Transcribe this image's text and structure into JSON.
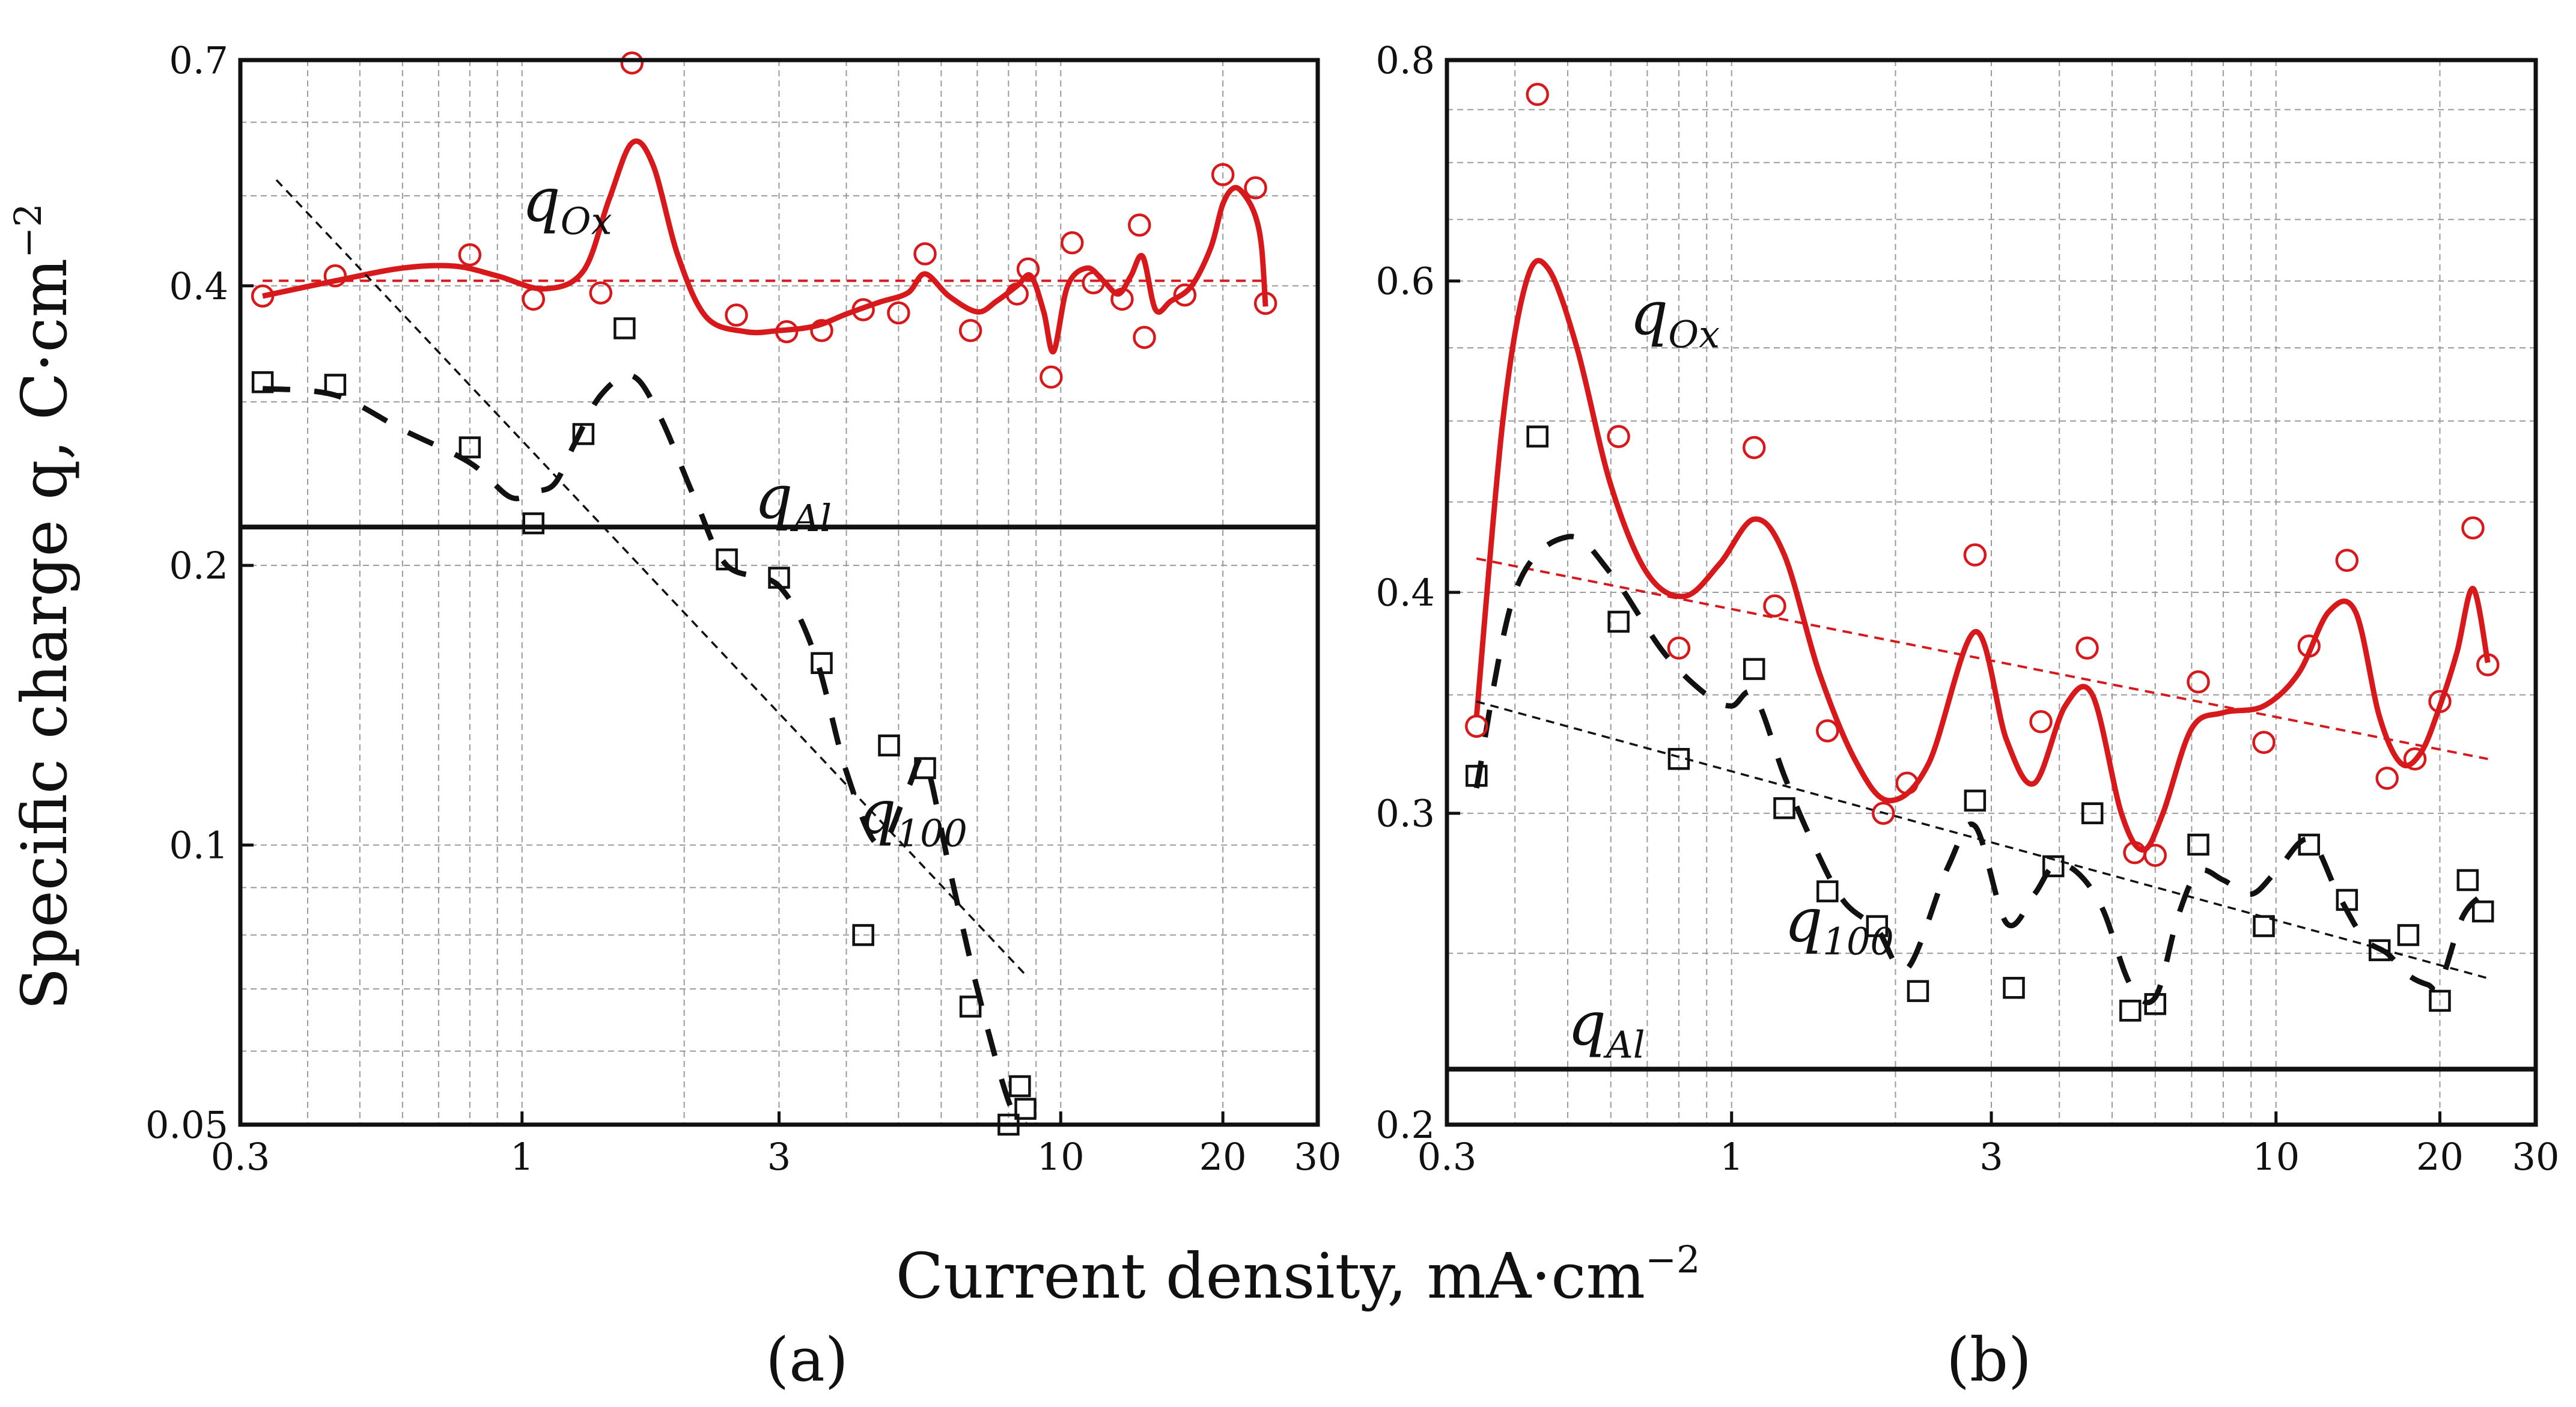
{
  "figure": {
    "ylabel": "Specific charge q, C·cm",
    "ylabel_exp": "−2",
    "xlabel": "Current density, mA·cm",
    "xlabel_exp": "−2"
  },
  "colors": {
    "ox": "#d7191c",
    "hundred": "#111111",
    "axis": "#111111",
    "grid": "#9a9a9a"
  },
  "chart_data": [
    {
      "type": "scatter",
      "panel_label": "(a)",
      "xscale": "log",
      "yscale": "log",
      "xlim": [
        0.3,
        30
      ],
      "ylim": [
        0.05,
        0.7
      ],
      "xticks": [
        0.3,
        1,
        3,
        10,
        20,
        30
      ],
      "xtick_labels": [
        "0.3",
        "1",
        "3",
        "10",
        "20",
        "30"
      ],
      "yticks": [
        0.05,
        0.1,
        0.2,
        0.4,
        0.7
      ],
      "ytick_labels": [
        "0.05",
        "0.1",
        "0.2",
        "0.4",
        "0.7"
      ],
      "xgrid": [
        0.3,
        0.4,
        0.5,
        0.6,
        0.7,
        0.8,
        0.9,
        1,
        2,
        3,
        4,
        5,
        6,
        7,
        8,
        9,
        10,
        20,
        30
      ],
      "ygrid": [
        0.05,
        0.06,
        0.07,
        0.08,
        0.09,
        0.1,
        0.2,
        0.3,
        0.4,
        0.5,
        0.6,
        0.7
      ],
      "q_al": 0.22,
      "annotations": {
        "ox": {
          "main": "q",
          "sub": "Ox",
          "at": [
            1.0,
            0.47
          ]
        },
        "hundred": {
          "main": "q",
          "sub": "100",
          "at": [
            4.2,
            0.103
          ]
        },
        "al": {
          "main": "q",
          "sub": "Al",
          "at": [
            2.7,
            0.225
          ]
        }
      },
      "series": [
        {
          "name": "q_Ox data",
          "marker": "circle",
          "color": "#d7191c",
          "x": [
            0.33,
            0.45,
            0.8,
            1.05,
            1.4,
            1.6,
            2.5,
            3.1,
            3.6,
            4.3,
            5.0,
            5.6,
            6.8,
            8.3,
            8.7,
            9.6,
            10.5,
            11.5,
            13.0,
            14.0,
            14.3,
            17.0,
            20.0,
            23.0,
            24.0
          ],
          "y": [
            0.39,
            0.41,
            0.432,
            0.387,
            0.393,
            0.695,
            0.372,
            0.357,
            0.358,
            0.377,
            0.374,
            0.433,
            0.358,
            0.392,
            0.417,
            0.319,
            0.445,
            0.403,
            0.387,
            0.465,
            0.352,
            0.391,
            0.527,
            0.51,
            0.383
          ]
        },
        {
          "name": "q_Ox smooth",
          "line": "solid",
          "color": "#d7191c",
          "x": [
            0.33,
            0.45,
            0.6,
            0.75,
            0.9,
            1.1,
            1.3,
            1.45,
            1.6,
            1.75,
            1.95,
            2.2,
            2.6,
            3.0,
            3.5,
            4.0,
            4.6,
            5.2,
            5.6,
            6.2,
            7.0,
            7.6,
            8.3,
            8.8,
            9.3,
            9.7,
            10.3,
            11.2,
            12.0,
            12.8,
            13.5,
            14.2,
            15.0,
            16.0,
            17.5,
            19.0,
            20.0,
            21.0,
            22.0,
            23.0,
            23.6,
            24.0
          ],
          "y": [
            0.39,
            0.405,
            0.418,
            0.42,
            0.41,
            0.397,
            0.415,
            0.495,
            0.57,
            0.54,
            0.43,
            0.37,
            0.357,
            0.358,
            0.362,
            0.373,
            0.384,
            0.393,
            0.412,
            0.39,
            0.375,
            0.385,
            0.4,
            0.41,
            0.375,
            0.34,
            0.4,
            0.418,
            0.405,
            0.392,
            0.41,
            0.43,
            0.377,
            0.385,
            0.4,
            0.44,
            0.49,
            0.51,
            0.5,
            0.475,
            0.44,
            0.38
          ]
        },
        {
          "name": "q_Ox trend",
          "line": "dashed",
          "color": "#d7191c",
          "x": [
            0.33,
            24.0
          ],
          "y": [
            0.405,
            0.405
          ]
        },
        {
          "name": "q_100 data",
          "marker": "square",
          "color": "#111111",
          "x": [
            0.33,
            0.45,
            0.8,
            1.05,
            1.3,
            1.55,
            2.4,
            3.0,
            3.6,
            4.3,
            4.8,
            5.6,
            6.8,
            8.0,
            8.4,
            8.6
          ],
          "y": [
            0.315,
            0.313,
            0.268,
            0.222,
            0.277,
            0.36,
            0.203,
            0.194,
            0.157,
            0.08,
            0.128,
            0.121,
            0.067,
            0.05,
            0.055,
            0.052
          ]
        },
        {
          "name": "q_100 dashed curve",
          "line": "long-dash",
          "color": "#111111",
          "x": [
            0.33,
            0.45,
            0.6,
            0.8,
            0.95,
            1.05,
            1.15,
            1.25,
            1.4,
            1.6,
            1.8,
            2.1,
            2.4,
            3.0,
            3.5,
            4.0,
            4.6,
            5.2,
            5.6,
            6.2,
            7.0,
            8.0,
            8.6
          ],
          "y": [
            0.31,
            0.305,
            0.28,
            0.258,
            0.237,
            0.24,
            0.245,
            0.27,
            0.305,
            0.32,
            0.29,
            0.235,
            0.2,
            0.19,
            0.16,
            0.12,
            0.1,
            0.115,
            0.123,
            0.095,
            0.07,
            0.053,
            0.05
          ]
        },
        {
          "name": "q_100 trend",
          "line": "dashed-thin",
          "color": "#111111",
          "x": [
            0.35,
            8.7
          ],
          "y": [
            0.52,
            0.072
          ]
        },
        {
          "name": "q_Al",
          "line": "solid-thick",
          "color": "#111111",
          "x": [
            0.3,
            30
          ],
          "y": [
            0.22,
            0.22
          ]
        }
      ]
    },
    {
      "type": "scatter",
      "panel_label": "(b)",
      "xscale": "log",
      "yscale": "log",
      "xlim": [
        0.3,
        30
      ],
      "ylim": [
        0.2,
        0.8
      ],
      "xticks": [
        0.3,
        1,
        3,
        10,
        20,
        30
      ],
      "xtick_labels": [
        "0.3",
        "1",
        "3",
        "10",
        "20",
        "30"
      ],
      "yticks": [
        0.2,
        0.3,
        0.4,
        0.6,
        0.8
      ],
      "ytick_labels": [
        "0.2",
        "0.3",
        "0.4",
        "0.6",
        "0.8"
      ],
      "xgrid": [
        0.3,
        0.4,
        0.5,
        0.6,
        0.7,
        0.8,
        0.9,
        1,
        2,
        3,
        4,
        5,
        6,
        7,
        8,
        9,
        10,
        20,
        30
      ],
      "ygrid": [
        0.2,
        0.25,
        0.3,
        0.35,
        0.4,
        0.45,
        0.5,
        0.55,
        0.6,
        0.65,
        0.7,
        0.75,
        0.8
      ],
      "q_al": 0.215,
      "annotations": {
        "ox": {
          "main": "q",
          "sub": "Ox",
          "at": [
            0.65,
            0.56
          ]
        },
        "hundred": {
          "main": "q",
          "sub": "100",
          "at": [
            1.25,
            0.254
          ]
        },
        "al": {
          "main": "q",
          "sub": "Al",
          "at": [
            0.5,
            0.222
          ]
        }
      },
      "series": [
        {
          "name": "q_Ox data",
          "marker": "circle",
          "color": "#d7191c",
          "x": [
            0.34,
            0.44,
            0.62,
            0.8,
            1.1,
            1.2,
            1.5,
            1.9,
            2.1,
            2.8,
            3.7,
            4.5,
            5.5,
            6.0,
            7.2,
            9.5,
            11.5,
            13.5,
            16.0,
            18.0,
            20.0,
            23.0,
            24.5
          ],
          "y": [
            0.336,
            0.765,
            0.49,
            0.372,
            0.483,
            0.393,
            0.334,
            0.3,
            0.312,
            0.42,
            0.338,
            0.372,
            0.285,
            0.284,
            0.356,
            0.329,
            0.373,
            0.417,
            0.314,
            0.322,
            0.347,
            0.435,
            0.364
          ]
        },
        {
          "name": "q_Ox smooth",
          "line": "solid",
          "color": "#d7191c",
          "x": [
            0.34,
            0.38,
            0.42,
            0.46,
            0.52,
            0.6,
            0.7,
            0.82,
            0.95,
            1.1,
            1.25,
            1.45,
            1.7,
            1.95,
            2.3,
            2.8,
            3.2,
            3.6,
            4.1,
            4.6,
            5.2,
            5.7,
            6.2,
            7.0,
            8.0,
            9.5,
            11.0,
            12.5,
            14.0,
            15.5,
            17.0,
            18.5,
            20.0,
            21.5,
            23.0,
            24.5
          ],
          "y": [
            0.34,
            0.5,
            0.6,
            0.61,
            0.55,
            0.46,
            0.41,
            0.398,
            0.415,
            0.44,
            0.42,
            0.36,
            0.32,
            0.305,
            0.32,
            0.38,
            0.33,
            0.312,
            0.345,
            0.35,
            0.3,
            0.286,
            0.3,
            0.335,
            0.342,
            0.345,
            0.36,
            0.39,
            0.39,
            0.34,
            0.32,
            0.325,
            0.345,
            0.37,
            0.402,
            0.365
          ]
        },
        {
          "name": "q_Ox trend",
          "line": "dashed",
          "color": "#d7191c",
          "x": [
            0.34,
            24.5
          ],
          "y": [
            0.418,
            0.322
          ]
        },
        {
          "name": "q_100 data",
          "marker": "square",
          "color": "#111111",
          "x": [
            0.34,
            0.44,
            0.62,
            0.8,
            1.1,
            1.25,
            1.5,
            1.85,
            2.2,
            2.8,
            3.3,
            3.9,
            4.6,
            5.4,
            6.0,
            7.2,
            9.5,
            11.5,
            13.5,
            15.5,
            17.5,
            20.0,
            22.5,
            24.0
          ],
          "y": [
            0.315,
            0.49,
            0.385,
            0.322,
            0.362,
            0.302,
            0.271,
            0.259,
            0.238,
            0.305,
            0.239,
            0.28,
            0.3,
            0.232,
            0.234,
            0.288,
            0.259,
            0.288,
            0.268,
            0.251,
            0.256,
            0.235,
            0.275,
            0.264
          ]
        },
        {
          "name": "q_100 dashed curve",
          "line": "long-dash",
          "color": "#111111",
          "x": [
            0.34,
            0.4,
            0.5,
            0.6,
            0.75,
            0.9,
            1.0,
            1.1,
            1.25,
            1.4,
            1.6,
            1.85,
            2.1,
            2.5,
            2.8,
            3.2,
            3.6,
            3.9,
            4.3,
            4.8,
            5.4,
            6.0,
            6.6,
            7.2,
            8.0,
            9.0,
            10.0,
            11.5,
            13.0,
            14.5,
            16.0,
            17.5,
            19.0,
            20.0,
            22.0,
            24.0
          ],
          "y": [
            0.31,
            0.4,
            0.43,
            0.41,
            0.37,
            0.35,
            0.345,
            0.35,
            0.315,
            0.29,
            0.268,
            0.258,
            0.245,
            0.28,
            0.295,
            0.26,
            0.27,
            0.28,
            0.278,
            0.265,
            0.24,
            0.236,
            0.262,
            0.278,
            0.275,
            0.27,
            0.278,
            0.29,
            0.27,
            0.255,
            0.25,
            0.243,
            0.24,
            0.24,
            0.262,
            0.27
          ]
        },
        {
          "name": "q_100 trend",
          "line": "dashed-thin",
          "color": "#111111",
          "x": [
            0.34,
            24.5
          ],
          "y": [
            0.347,
            0.242
          ]
        },
        {
          "name": "q_Al",
          "line": "solid-thick",
          "color": "#111111",
          "x": [
            0.3,
            30
          ],
          "y": [
            0.215,
            0.215
          ]
        }
      ]
    }
  ]
}
